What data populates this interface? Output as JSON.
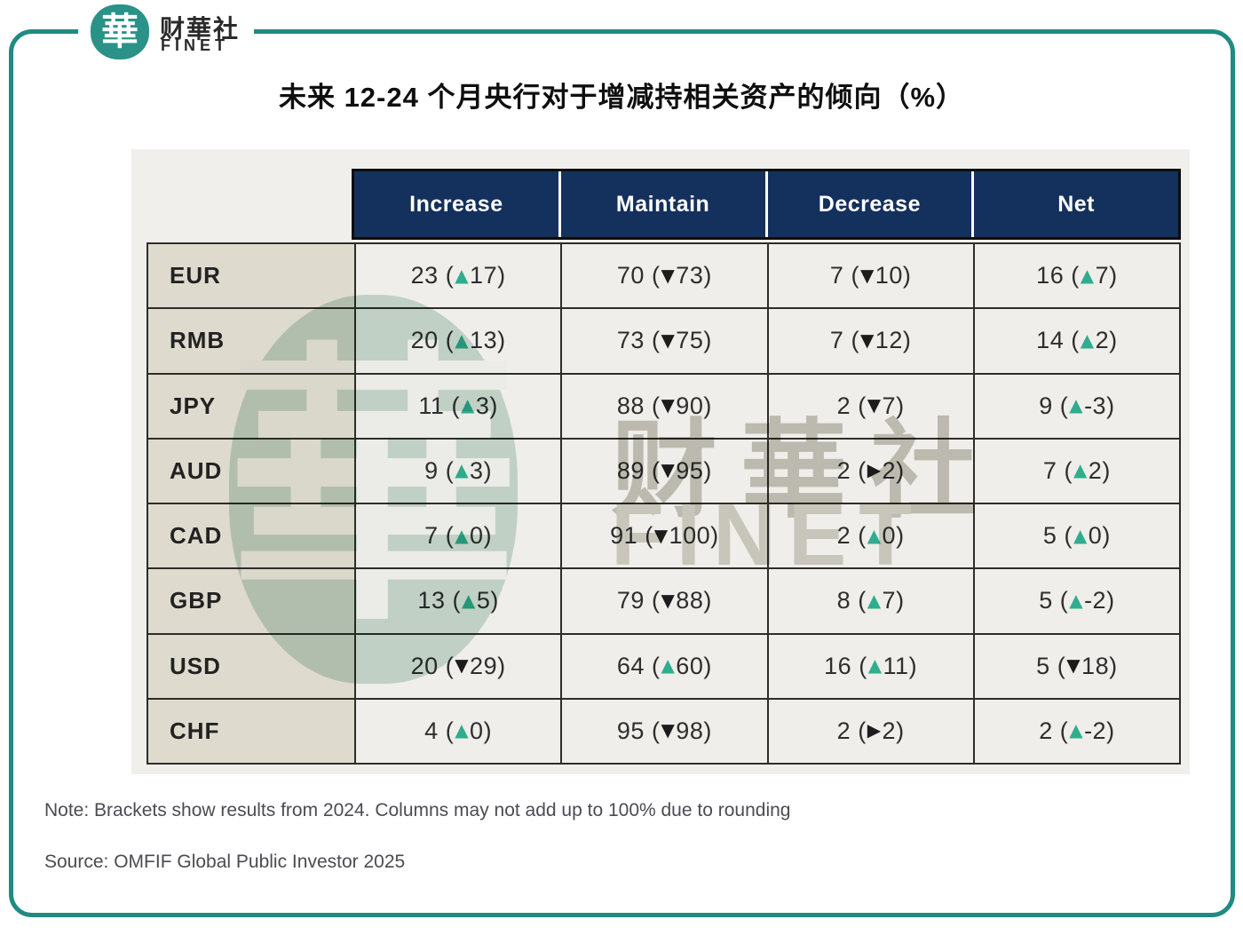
{
  "logo": {
    "glyph": "華",
    "name_cn": "财華社",
    "name_en": "FINET"
  },
  "title": "未来 12-24 个月央行对于增减持相关资产的倾向（%）",
  "chart_data": {
    "type": "table",
    "title": "未来 12-24 个月央行对于增减持相关资产的倾向（%）",
    "columns": [
      "Increase",
      "Maintain",
      "Decrease",
      "Net"
    ],
    "rows": [
      {
        "label": "EUR",
        "cells": [
          {
            "value": 23,
            "dir": "up",
            "prev": 17
          },
          {
            "value": 70,
            "dir": "down",
            "prev": 73
          },
          {
            "value": 7,
            "dir": "down",
            "prev": 10
          },
          {
            "value": 16,
            "dir": "up",
            "prev": 7
          }
        ]
      },
      {
        "label": "RMB",
        "cells": [
          {
            "value": 20,
            "dir": "up",
            "prev": 13
          },
          {
            "value": 73,
            "dir": "down",
            "prev": 75
          },
          {
            "value": 7,
            "dir": "down",
            "prev": 12
          },
          {
            "value": 14,
            "dir": "up",
            "prev": 2
          }
        ]
      },
      {
        "label": "JPY",
        "cells": [
          {
            "value": 11,
            "dir": "up",
            "prev": 3
          },
          {
            "value": 88,
            "dir": "down",
            "prev": 90
          },
          {
            "value": 2,
            "dir": "down",
            "prev": 7
          },
          {
            "value": 9,
            "dir": "up",
            "prev": -3
          }
        ]
      },
      {
        "label": "AUD",
        "cells": [
          {
            "value": 9,
            "dir": "up",
            "prev": 3
          },
          {
            "value": 89,
            "dir": "down",
            "prev": 95
          },
          {
            "value": 2,
            "dir": "right",
            "prev": 2
          },
          {
            "value": 7,
            "dir": "up",
            "prev": 2
          }
        ]
      },
      {
        "label": "CAD",
        "cells": [
          {
            "value": 7,
            "dir": "up",
            "prev": 0
          },
          {
            "value": 91,
            "dir": "down",
            "prev": 100
          },
          {
            "value": 2,
            "dir": "up",
            "prev": 0
          },
          {
            "value": 5,
            "dir": "up",
            "prev": 0
          }
        ]
      },
      {
        "label": "GBP",
        "cells": [
          {
            "value": 13,
            "dir": "up",
            "prev": 5
          },
          {
            "value": 79,
            "dir": "down",
            "prev": 88
          },
          {
            "value": 8,
            "dir": "up",
            "prev": 7
          },
          {
            "value": 5,
            "dir": "up",
            "prev": -2
          }
        ]
      },
      {
        "label": "USD",
        "cells": [
          {
            "value": 20,
            "dir": "down",
            "prev": 29
          },
          {
            "value": 64,
            "dir": "up",
            "prev": 60
          },
          {
            "value": 16,
            "dir": "up",
            "prev": 11
          },
          {
            "value": 5,
            "dir": "down",
            "prev": 18
          }
        ]
      },
      {
        "label": "CHF",
        "cells": [
          {
            "value": 4,
            "dir": "up",
            "prev": 0
          },
          {
            "value": 95,
            "dir": "down",
            "prev": 98
          },
          {
            "value": 2,
            "dir": "right",
            "prev": 2
          },
          {
            "value": 2,
            "dir": "up",
            "prev": -2
          }
        ]
      }
    ],
    "grid": true,
    "legend_position": "none",
    "note": "Note: Brackets show results from 2024. Columns may not add up to 100% due to rounding",
    "source": "Source: OMFIF Global Public Investor 2025"
  },
  "icons": {
    "up": "▲",
    "down": "▼",
    "right": "▶"
  },
  "colors": {
    "frame_teal": "#1f8b81",
    "logo_teal": "#2a9287",
    "header_navy": "#14305d",
    "up_green": "#2fad8e",
    "down_black": "#1c1c1c",
    "panel_bg": "#f0efeb",
    "label_bg": "#dedacd",
    "cell_bg": "#efeeea",
    "grid_line": "#2e2d29",
    "note_gray": "#4b4b53"
  },
  "watermark": {
    "glyph": "華",
    "text_cn": "财華社",
    "text_en": "FINET"
  }
}
